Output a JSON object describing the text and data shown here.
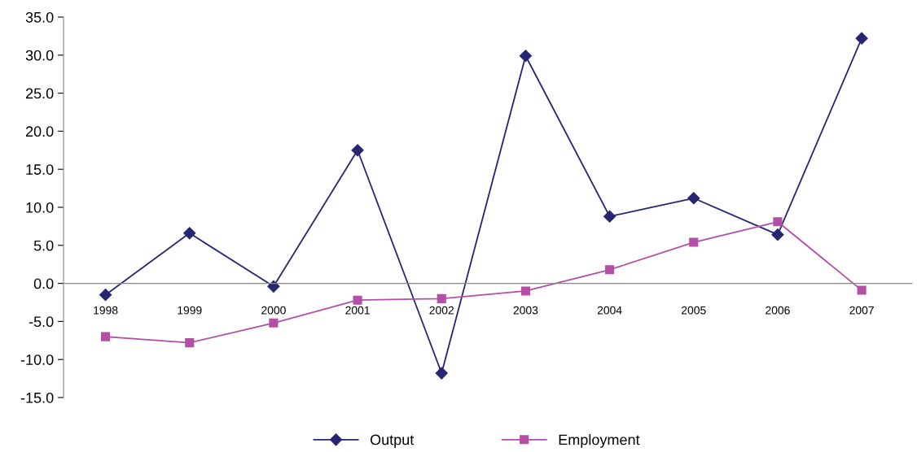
{
  "chart_data": {
    "type": "line",
    "categories": [
      "1998",
      "1999",
      "2000",
      "2001",
      "2002",
      "2003",
      "2004",
      "2005",
      "2006",
      "2007"
    ],
    "series": [
      {
        "name": "Output",
        "color": "#262673",
        "marker": "diamond",
        "values": [
          -1.5,
          6.6,
          -0.4,
          17.5,
          -11.8,
          29.9,
          8.8,
          11.2,
          6.4,
          32.2
        ]
      },
      {
        "name": "Employment",
        "color": "#b44fa6",
        "marker": "square",
        "values": [
          -7.0,
          -7.8,
          -5.2,
          -2.2,
          -2.0,
          -1.0,
          1.8,
          5.4,
          8.1,
          -0.9
        ]
      }
    ],
    "ylim": [
      -15,
      35
    ],
    "yticks": [
      {
        "value": -15,
        "label": "-15.0"
      },
      {
        "value": -10,
        "label": "-10.0"
      },
      {
        "value": -5,
        "label": "-5.0"
      },
      {
        "value": 0,
        "label": "0.0"
      },
      {
        "value": 5,
        "label": "5.0"
      },
      {
        "value": 10,
        "label": "10.0"
      },
      {
        "value": 15,
        "label": "15.0"
      },
      {
        "value": 20,
        "label": "20.0"
      },
      {
        "value": 25,
        "label": "25.0"
      },
      {
        "value": 30,
        "label": "30.0"
      },
      {
        "value": 35,
        "label": "35.0"
      }
    ],
    "grid": false,
    "legend": "bottom",
    "line_style": "solid"
  }
}
